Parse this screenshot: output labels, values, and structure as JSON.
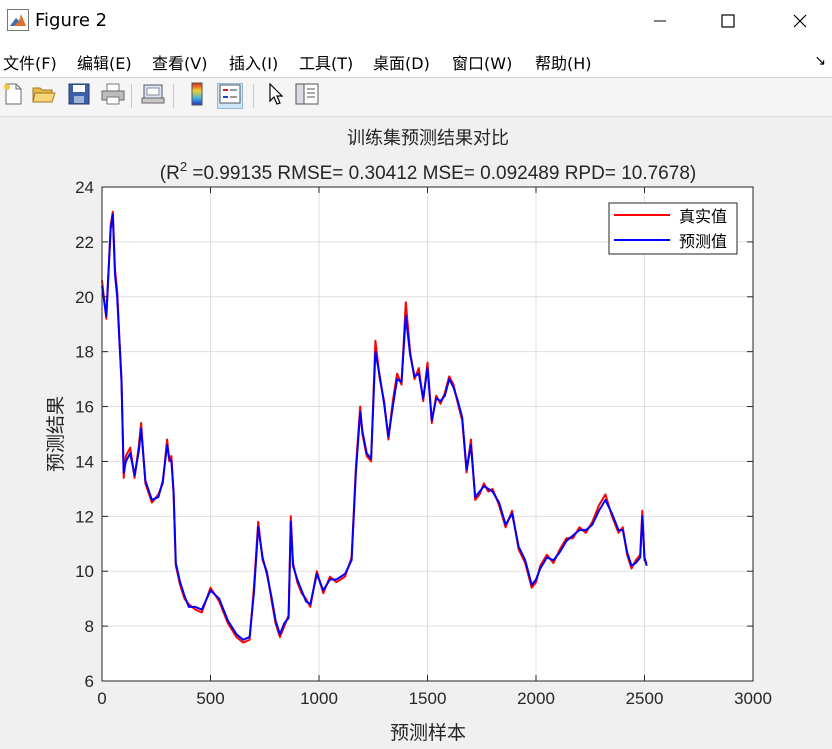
{
  "window": {
    "title": "Figure 2",
    "icon": "matlab-icon",
    "controls": [
      "minimize-icon",
      "maximize-icon",
      "close-icon"
    ]
  },
  "menu": {
    "items": [
      "文件(F)",
      "编辑(E)",
      "查看(V)",
      "插入(I)",
      "工具(T)",
      "桌面(D)",
      "窗口(W)",
      "帮助(H)"
    ],
    "dock_arrow": "↘"
  },
  "toolbar": {
    "buttons": [
      "new-figure-icon",
      "open-file-icon",
      "save-icon",
      "print-icon",
      "link-plot-icon",
      "colorbar-icon",
      "legend-icon",
      "pointer-icon",
      "property-inspector-icon"
    ],
    "active": "legend-icon"
  },
  "chart_data": {
    "type": "line",
    "title": "训练集预测结果对比",
    "subtitle_prefix": "(R",
    "subtitle_sup": "2",
    "subtitle_rest": " =0.99135 RMSE= 0.30412 MSE= 0.092489 RPD= 10.7678)",
    "xlabel": "预测样本",
    "ylabel": "预测结果",
    "xlim": [
      0,
      3000
    ],
    "ylim": [
      6,
      24
    ],
    "xticks": [
      0,
      500,
      1000,
      1500,
      2000,
      2500,
      3000
    ],
    "yticks": [
      6,
      8,
      10,
      12,
      14,
      16,
      18,
      20,
      22,
      24
    ],
    "grid": true,
    "legend_position": "top-right",
    "series": [
      {
        "name": "真实值",
        "color": "#ff0000"
      },
      {
        "name": "预测值",
        "color": "#0000ff"
      }
    ],
    "x": [
      0,
      20,
      40,
      50,
      60,
      70,
      80,
      90,
      100,
      110,
      130,
      150,
      170,
      180,
      200,
      230,
      260,
      280,
      300,
      310,
      320,
      330,
      340,
      360,
      380,
      400,
      430,
      460,
      500,
      540,
      580,
      620,
      650,
      680,
      700,
      720,
      740,
      760,
      780,
      800,
      820,
      840,
      860,
      870,
      880,
      900,
      920,
      940,
      960,
      990,
      1020,
      1050,
      1080,
      1120,
      1150,
      1170,
      1190,
      1200,
      1220,
      1240,
      1260,
      1280,
      1300,
      1320,
      1340,
      1360,
      1380,
      1400,
      1420,
      1440,
      1460,
      1480,
      1500,
      1520,
      1540,
      1560,
      1580,
      1600,
      1620,
      1640,
      1660,
      1680,
      1700,
      1720,
      1740,
      1760,
      1780,
      1800,
      1830,
      1860,
      1890,
      1920,
      1950,
      1980,
      2000,
      2020,
      2050,
      2080,
      2110,
      2140,
      2170,
      2200,
      2230,
      2260,
      2290,
      2320,
      2350,
      2380,
      2400,
      2420,
      2440,
      2460,
      2480,
      2490,
      2500,
      2510
    ],
    "true_values": [
      20.6,
      19.2,
      22.6,
      23.1,
      21.0,
      20.2,
      18.5,
      17.0,
      13.4,
      14.2,
      14.5,
      13.4,
      14.6,
      15.4,
      13.2,
      12.5,
      12.8,
      13.2,
      14.8,
      14.0,
      14.2,
      12.8,
      10.2,
      9.5,
      9.0,
      8.8,
      8.6,
      8.5,
      9.4,
      8.9,
      8.1,
      7.6,
      7.4,
      7.5,
      9.4,
      11.8,
      10.4,
      10.0,
      9.0,
      8.1,
      7.6,
      8.0,
      8.4,
      12.0,
      10.3,
      9.6,
      9.2,
      9.0,
      8.7,
      10.0,
      9.2,
      9.8,
      9.6,
      9.8,
      10.5,
      13.8,
      16.0,
      15.0,
      14.2,
      14.0,
      18.4,
      17.0,
      16.2,
      14.8,
      16.2,
      17.2,
      16.8,
      19.8,
      18.0,
      17.0,
      17.4,
      16.2,
      17.6,
      15.4,
      16.4,
      16.1,
      16.5,
      17.1,
      16.8,
      16.1,
      15.5,
      13.6,
      14.8,
      12.6,
      12.8,
      13.2,
      12.9,
      13.0,
      12.4,
      11.6,
      12.2,
      10.8,
      10.3,
      9.4,
      9.6,
      10.2,
      10.6,
      10.3,
      10.8,
      11.2,
      11.2,
      11.6,
      11.4,
      11.8,
      12.4,
      12.8,
      12.0,
      11.4,
      11.6,
      10.6,
      10.1,
      10.4,
      10.6,
      12.2,
      10.4,
      10.3
    ],
    "pred_values": [
      20.4,
      19.3,
      22.5,
      23.0,
      20.8,
      20.0,
      18.4,
      16.9,
      13.6,
      14.0,
      14.3,
      13.5,
      14.4,
      15.2,
      13.3,
      12.6,
      12.7,
      13.3,
      14.6,
      14.1,
      14.0,
      12.9,
      10.3,
      9.6,
      9.1,
      8.7,
      8.7,
      8.6,
      9.3,
      9.0,
      8.2,
      7.7,
      7.5,
      7.6,
      9.2,
      11.6,
      10.5,
      9.9,
      9.1,
      8.2,
      7.7,
      8.1,
      8.3,
      11.8,
      10.2,
      9.7,
      9.3,
      8.9,
      8.8,
      9.9,
      9.3,
      9.7,
      9.7,
      9.9,
      10.4,
      13.6,
      15.8,
      15.1,
      14.3,
      14.1,
      18.0,
      17.1,
      16.1,
      14.9,
      16.0,
      17.0,
      16.9,
      19.3,
      17.9,
      17.1,
      17.2,
      16.3,
      17.4,
      15.5,
      16.3,
      16.2,
      16.4,
      17.0,
      16.7,
      16.2,
      15.6,
      13.7,
      14.6,
      12.7,
      12.9,
      13.1,
      13.0,
      12.9,
      12.5,
      11.7,
      12.1,
      10.9,
      10.4,
      9.5,
      9.7,
      10.1,
      10.5,
      10.4,
      10.7,
      11.1,
      11.3,
      11.5,
      11.5,
      11.7,
      12.2,
      12.6,
      12.1,
      11.5,
      11.5,
      10.7,
      10.2,
      10.3,
      10.5,
      12.0,
      10.5,
      10.2
    ]
  }
}
